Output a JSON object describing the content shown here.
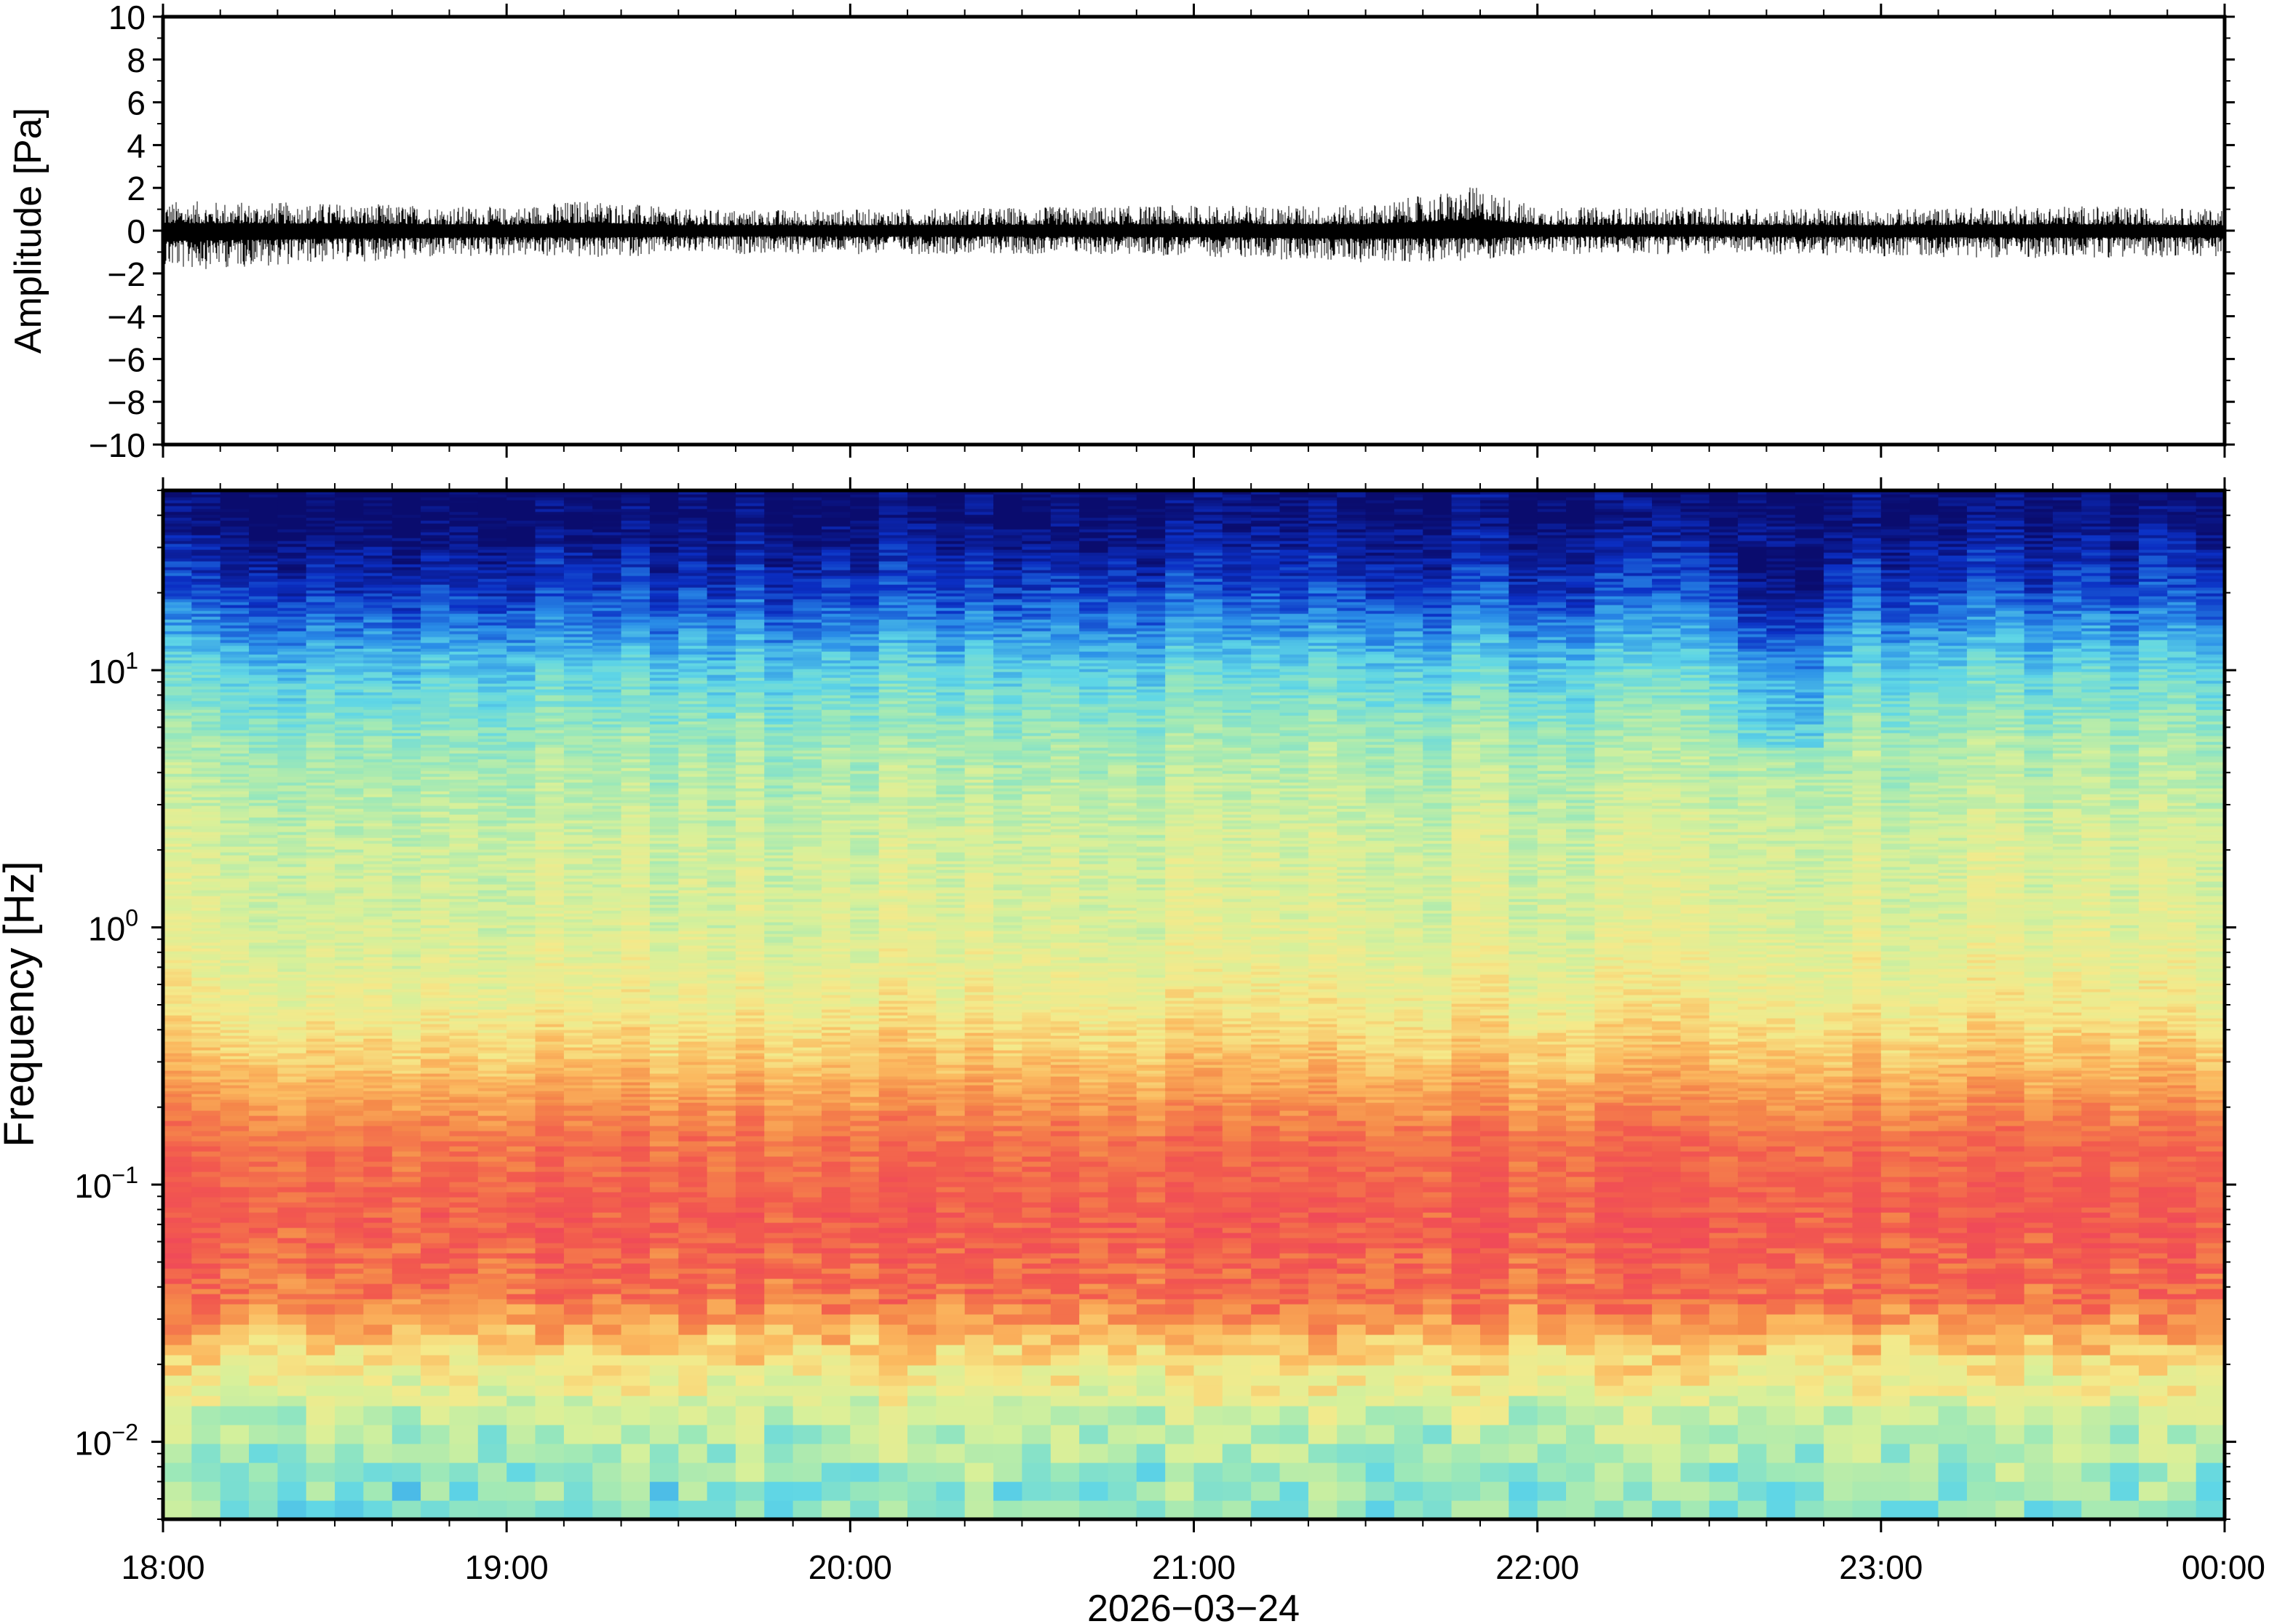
{
  "chart_data": [
    {
      "type": "line",
      "panel": "waveform",
      "ylabel": "Amplitude [Pa]",
      "ylim": [
        -10,
        10
      ],
      "yticks": [
        10,
        8,
        6,
        4,
        2,
        0,
        -2,
        -4,
        -6,
        -8,
        -10
      ],
      "ytick_labels": [
        "10",
        "8",
        "6",
        "4",
        "2",
        "0",
        "−2",
        "−4",
        "−6",
        "−8",
        "−10"
      ],
      "series": [
        {
          "x_hours": [
            18.0,
            18.5,
            19.0,
            19.25,
            19.5,
            20.0,
            20.5,
            21.0,
            21.5,
            21.83,
            22.0,
            22.5,
            23.0,
            23.5,
            24.0
          ],
          "envelope_max": [
            1.4,
            1.3,
            1.1,
            1.5,
            1.0,
            1.0,
            1.1,
            1.2,
            1.2,
            2.1,
            1.1,
            1.1,
            1.0,
            1.2,
            1.0
          ],
          "envelope_min": [
            -1.9,
            -1.5,
            -1.2,
            -1.3,
            -1.1,
            -1.1,
            -1.1,
            -1.2,
            -1.5,
            -1.4,
            -1.1,
            -1.1,
            -1.2,
            -1.3,
            -1.2
          ],
          "color": "#000000"
        }
      ],
      "grid": false
    },
    {
      "type": "heatmap",
      "panel": "spectrogram",
      "ylabel": "Frequency [Hz]",
      "xlabel": "2026−03−24",
      "y_scale": "log",
      "ylim": [
        0.005,
        50
      ],
      "yticks": [
        {
          "base": "10",
          "exp": "1",
          "value": 10
        },
        {
          "base": "10",
          "exp": "0",
          "value": 1
        },
        {
          "base": "10",
          "exp": "−1",
          "value": 0.1
        },
        {
          "base": "10",
          "exp": "−2",
          "value": 0.01
        }
      ],
      "xticks": [
        "18:00",
        "19:00",
        "20:00",
        "21:00",
        "22:00",
        "23:00",
        "00:00"
      ],
      "xlim_hours": [
        18,
        24
      ],
      "colormap": "rainbow (blue = low power, red = high power)",
      "power_profile_by_frequency": [
        {
          "freq": 40,
          "level": 0.0
        },
        {
          "freq": 20,
          "level": 0.12
        },
        {
          "freq": 10,
          "level": 0.3
        },
        {
          "freq": 5,
          "level": 0.42
        },
        {
          "freq": 2,
          "level": 0.5
        },
        {
          "freq": 1,
          "level": 0.52
        },
        {
          "freq": 0.5,
          "level": 0.58
        },
        {
          "freq": 0.3,
          "level": 0.68
        },
        {
          "freq": 0.15,
          "level": 0.85
        },
        {
          "freq": 0.07,
          "level": 0.92
        },
        {
          "freq": 0.035,
          "level": 0.85
        },
        {
          "freq": 0.02,
          "level": 0.62
        },
        {
          "freq": 0.01,
          "level": 0.45
        },
        {
          "freq": 0.006,
          "level": 0.38
        }
      ],
      "grid": false
    }
  ],
  "colors": {
    "frame": "#000000",
    "background": "#ffffff",
    "colormap_stops": [
      "#0a0c6e",
      "#0b2fc4",
      "#2a8ee8",
      "#5fd6e6",
      "#9ce8b8",
      "#d7f09a",
      "#f5e98a",
      "#fbb95f",
      "#f58a4a",
      "#f25a4e",
      "#f04a58"
    ]
  }
}
